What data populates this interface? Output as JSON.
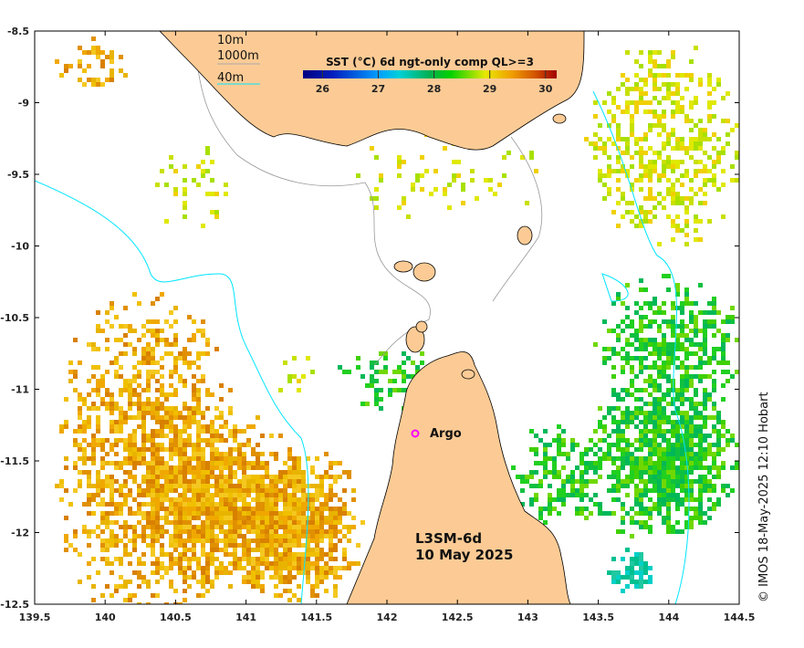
{
  "map": {
    "product": "L3SM-6d",
    "date": "10 May 2025",
    "credit": "© IMOS 18-May-2025 12:10 Hobart",
    "colorbar": {
      "title": "SST (°C) 6d ngt-only comp QL>=3",
      "ticks": [
        "26",
        "27",
        "28",
        "29",
        "30"
      ],
      "range": [
        25.65,
        30.2
      ]
    },
    "depth_legend": [
      {
        "label": "10m",
        "color": "#000000"
      },
      {
        "label": "1000m",
        "color": "#aaaaaa"
      },
      {
        "label": "40m",
        "color": "#00e5ff"
      }
    ],
    "marker": {
      "label": "Argo",
      "lon": 142.2,
      "lat": -11.3,
      "color": "#ff00ff"
    },
    "x_ticks": [
      "139.5",
      "140",
      "140.5",
      "141",
      "141.5",
      "142",
      "142.5",
      "143",
      "143.5",
      "144",
      "144.5"
    ],
    "y_ticks": [
      "-8.5",
      "-9",
      "-9.5",
      "-10",
      "-10.5",
      "-11",
      "-11.5",
      "-12",
      "-12.5"
    ],
    "extent": {
      "lon": [
        139.5,
        144.5
      ],
      "lat": [
        -12.5,
        -8.5
      ]
    },
    "colors": {
      "land": "#fccb95",
      "coast": "#000000",
      "iso1000": "#aaaaaa",
      "iso40": "#00e5ff"
    }
  }
}
